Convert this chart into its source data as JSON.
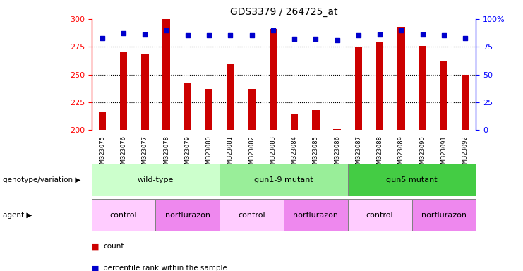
{
  "title": "GDS3379 / 264725_at",
  "samples": [
    "GSM323075",
    "GSM323076",
    "GSM323077",
    "GSM323078",
    "GSM323079",
    "GSM323080",
    "GSM323081",
    "GSM323082",
    "GSM323083",
    "GSM323084",
    "GSM323085",
    "GSM323086",
    "GSM323087",
    "GSM323088",
    "GSM323089",
    "GSM323090",
    "GSM323091",
    "GSM323092"
  ],
  "counts": [
    217,
    271,
    269,
    300,
    242,
    237,
    259,
    237,
    291,
    214,
    218,
    201,
    275,
    279,
    293,
    276,
    262,
    250
  ],
  "percentiles": [
    83,
    87,
    86,
    90,
    85,
    85,
    85,
    85,
    90,
    82,
    82,
    81,
    85,
    86,
    90,
    86,
    85,
    83
  ],
  "ymin": 200,
  "ymax": 300,
  "yticks": [
    200,
    225,
    250,
    275,
    300
  ],
  "right_yticks": [
    0,
    25,
    50,
    75,
    100
  ],
  "bar_color": "#cc0000",
  "dot_color": "#0000cc",
  "bar_width": 0.35,
  "genotype_groups": [
    {
      "label": "wild-type",
      "start": 0,
      "end": 5,
      "color": "#ccffcc"
    },
    {
      "label": "gun1-9 mutant",
      "start": 6,
      "end": 11,
      "color": "#99ee99"
    },
    {
      "label": "gun5 mutant",
      "start": 12,
      "end": 17,
      "color": "#44cc44"
    }
  ],
  "agent_groups": [
    {
      "label": "control",
      "start": 0,
      "end": 2,
      "color": "#ffccff"
    },
    {
      "label": "norflurazon",
      "start": 3,
      "end": 5,
      "color": "#ee88ee"
    },
    {
      "label": "control",
      "start": 6,
      "end": 8,
      "color": "#ffccff"
    },
    {
      "label": "norflurazon",
      "start": 9,
      "end": 11,
      "color": "#ee88ee"
    },
    {
      "label": "control",
      "start": 12,
      "end": 14,
      "color": "#ffccff"
    },
    {
      "label": "norflurazon",
      "start": 15,
      "end": 17,
      "color": "#ee88ee"
    }
  ],
  "legend_count_label": "count",
  "legend_pct_label": "percentile rank within the sample",
  "xlabel_genotype": "genotype/variation",
  "xlabel_agent": "agent",
  "background_color": "#ffffff"
}
